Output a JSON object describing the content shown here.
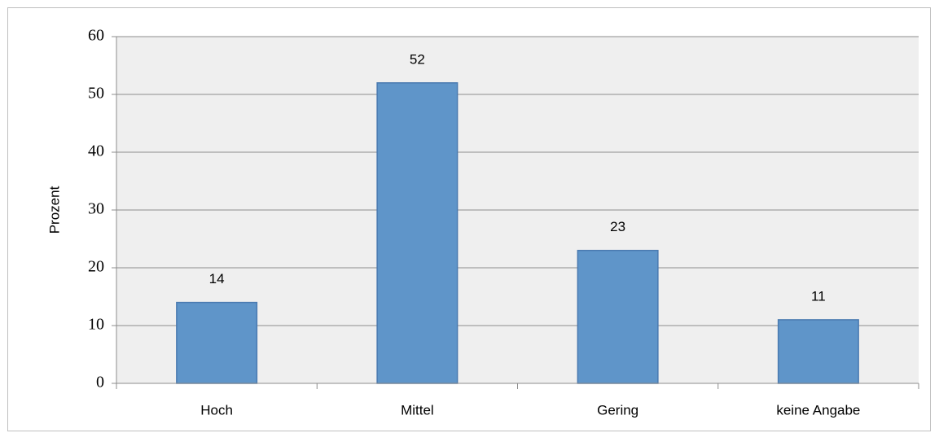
{
  "chart_data": {
    "type": "bar",
    "y_label": "Prozent",
    "categories": [
      "Hoch",
      "Mittel",
      "Gering",
      "keine Angabe"
    ],
    "values": [
      14,
      52,
      23,
      11
    ],
    "color": "#5f95c9",
    "edge_color": "#4a7ab0",
    "ylim": [
      0,
      60
    ],
    "yticks": [
      0,
      10,
      20,
      30,
      40,
      50,
      60
    ],
    "grid": true,
    "data_labels": true
  }
}
